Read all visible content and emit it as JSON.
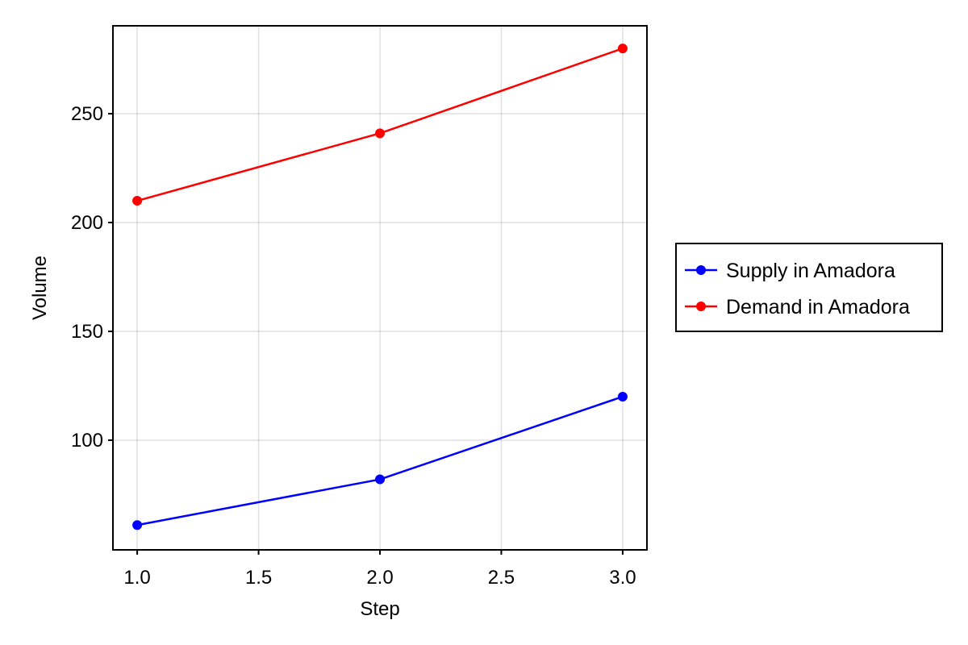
{
  "chart_data": {
    "type": "line",
    "title": "",
    "xlabel": "Step",
    "ylabel": "Volume",
    "xlim": [
      0.9,
      3.1
    ],
    "ylim": [
      49.6,
      290.4
    ],
    "xticks": [
      1.0,
      1.5,
      2.0,
      2.5,
      3.0
    ],
    "xtick_labels": [
      "1.0",
      "1.5",
      "2.0",
      "2.5",
      "3.0"
    ],
    "yticks": [
      100,
      150,
      200,
      250
    ],
    "ytick_labels": [
      "100",
      "150",
      "200",
      "250"
    ],
    "grid": true,
    "legend_position": "right",
    "x": [
      1,
      2,
      3
    ],
    "series": [
      {
        "name": "Supply in Amadora",
        "color": "#0000ff",
        "values": [
          61,
          82,
          120
        ]
      },
      {
        "name": "Demand in Amadora",
        "color": "#ff0000",
        "values": [
          210,
          241,
          280
        ]
      }
    ]
  }
}
